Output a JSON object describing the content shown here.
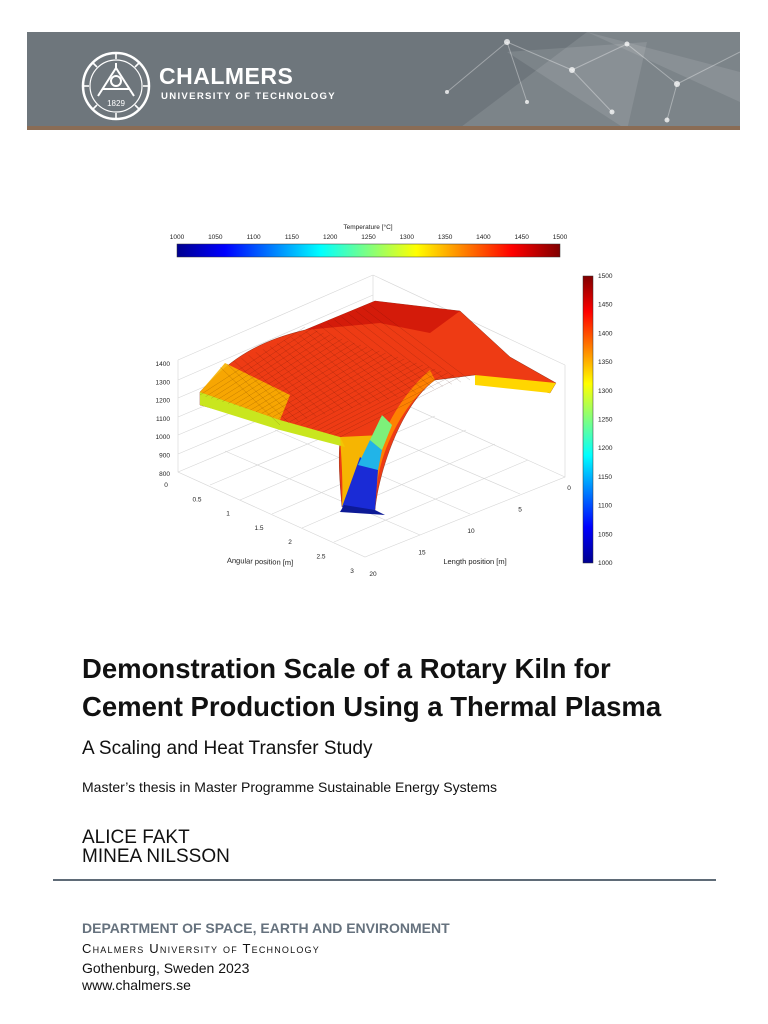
{
  "header": {
    "brand": "CHALMERS",
    "subbrand": "UNIVERSITY OF TECHNOLOGY",
    "seal_icon": "chalmers-seal-icon",
    "seal_year": "1829",
    "colors": {
      "banner": "#6e767c",
      "banner_border": "#8a6c55"
    }
  },
  "figure": {
    "colorbar_title": "Temperature [°C]",
    "colorbar_ticks": [
      "1000",
      "1050",
      "1100",
      "1150",
      "1200",
      "1250",
      "1300",
      "1350",
      "1400",
      "1450",
      "1500"
    ],
    "side_colorbar_ticks": [
      "1500",
      "1450",
      "1400",
      "1350",
      "1300",
      "1250",
      "1200",
      "1150",
      "1100",
      "1050",
      "1000"
    ],
    "z_ticks": [
      "1400",
      "1300",
      "1200",
      "1100",
      "1000",
      "900",
      "800"
    ],
    "angular_ticks": [
      "0",
      "0.5",
      "1",
      "1.5",
      "2",
      "2.5",
      "3"
    ],
    "length_ticks": [
      "0",
      "5",
      "10",
      "15",
      "20"
    ],
    "angular_label": "Angular position [m]",
    "length_label": "Length position [m]"
  },
  "cover": {
    "title_line1": "Demonstration Scale of a Rotary Kiln for",
    "title_line2": "Cement Production Using a Thermal Plasma",
    "subtitle": "A Scaling and Heat Transfer Study",
    "program": "Master’s thesis in Master Programme Sustainable Energy Systems",
    "authors": [
      "ALICE FAKT",
      "MINEA NILSSON"
    ],
    "department": "DEPARTMENT OF SPACE, EARTH AND ENVIRONMENT",
    "university": "Chalmers University of Technology",
    "location": "Gothenburg, Sweden 2023",
    "website": "www.chalmers.se"
  }
}
